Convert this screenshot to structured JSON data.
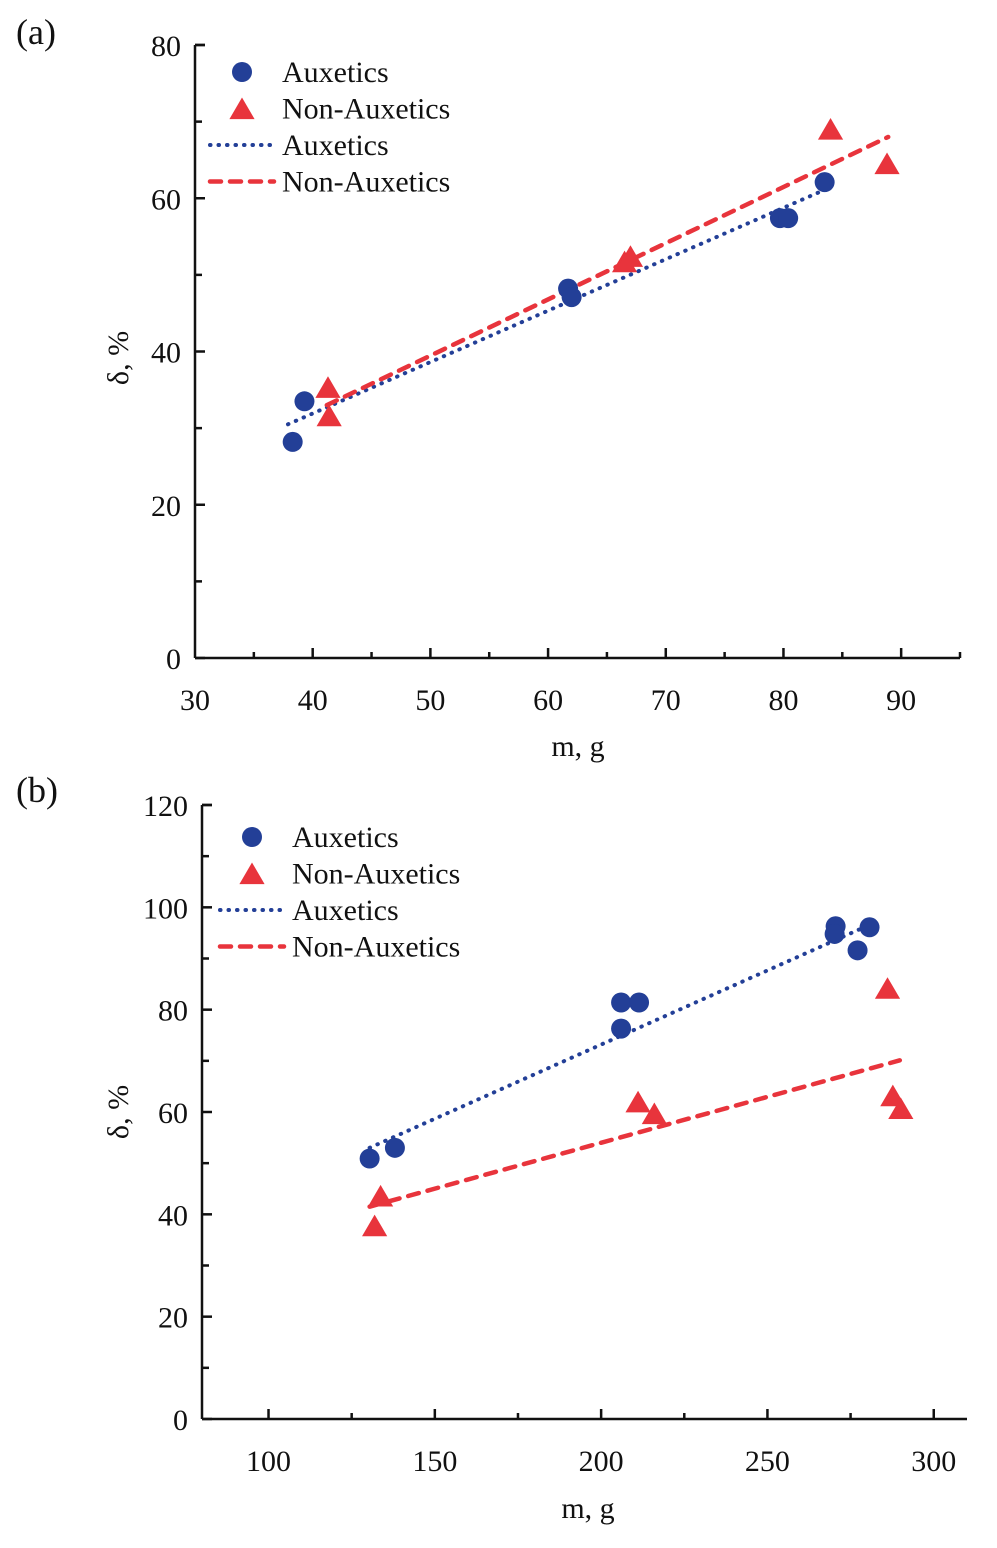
{
  "chart_data": [
    {
      "type": "scatter",
      "panel_label": "(a)",
      "title": "",
      "xlabel": "m, g",
      "ylabel": "δ, %",
      "xlim": [
        30,
        95
      ],
      "ylim": [
        0,
        80
      ],
      "xticks": [
        30,
        40,
        50,
        60,
        70,
        80,
        90
      ],
      "xtick_labels": [
        "30",
        "40",
        "50",
        "60",
        "70",
        "80",
        "90"
      ],
      "xminor": [
        35,
        45,
        55,
        65,
        75,
        85,
        95
      ],
      "yticks": [
        0,
        20,
        40,
        60,
        80
      ],
      "ytick_labels": [
        "0",
        "20",
        "40",
        "60",
        "80"
      ],
      "yminor": [
        10,
        30,
        50,
        70
      ],
      "grid": false,
      "legend_position": "top-left",
      "legend": [
        {
          "label": "Auxetics",
          "kind": "marker-circle",
          "color": "#233f97"
        },
        {
          "label": "Non-Auxetics",
          "kind": "marker-triangle",
          "color": "#e8343c"
        },
        {
          "label": "Auxetics",
          "kind": "line-dotted",
          "color": "#233f97"
        },
        {
          "label": "Non-Auxetics",
          "kind": "line-dashed",
          "color": "#e8343c"
        }
      ],
      "series": [
        {
          "name": "Auxetics",
          "marker": "circle",
          "color": "#233f97",
          "points": [
            [
              38.3,
              28.2
            ],
            [
              39.3,
              33.5
            ],
            [
              61.7,
              48.2
            ],
            [
              62.0,
              47.1
            ],
            [
              79.7,
              57.4
            ],
            [
              80.4,
              57.4
            ],
            [
              83.5,
              62.1
            ]
          ]
        },
        {
          "name": "Non-Auxetics",
          "marker": "triangle",
          "color": "#e8343c",
          "points": [
            [
              41.3,
              35.2
            ],
            [
              41.4,
              31.5
            ],
            [
              66.5,
              51.6
            ],
            [
              67.0,
              52.3
            ],
            [
              84.0,
              68.9
            ],
            [
              88.8,
              64.4
            ]
          ]
        }
      ],
      "fits": [
        {
          "name": "Auxetics",
          "style": "dotted",
          "color": "#233f97",
          "from": [
            37.9,
            30.5
          ],
          "to": [
            83.5,
            61.1
          ]
        },
        {
          "name": "Non-Auxetics",
          "style": "dashed",
          "color": "#e8343c",
          "from": [
            41.2,
            33.0
          ],
          "to": [
            88.9,
            68.0
          ]
        }
      ]
    },
    {
      "type": "scatter",
      "panel_label": "(b)",
      "title": "",
      "xlabel": "m, g",
      "ylabel": "δ, %",
      "xlim": [
        80,
        310
      ],
      "ylim": [
        0,
        120
      ],
      "xticks": [
        100,
        150,
        200,
        250,
        300
      ],
      "xtick_labels": [
        "100",
        "150",
        "200",
        "250",
        "300"
      ],
      "xminor": [
        125,
        175,
        225,
        275
      ],
      "yticks": [
        0,
        20,
        40,
        60,
        80,
        100,
        120
      ],
      "ytick_labels": [
        "0",
        "20",
        "40",
        "60",
        "80",
        "100",
        "120"
      ],
      "yminor": [
        10,
        30,
        50,
        70,
        90,
        110
      ],
      "grid": false,
      "legend_position": "top-left",
      "legend": [
        {
          "label": "Auxetics",
          "kind": "marker-circle",
          "color": "#233f97"
        },
        {
          "label": "Non-Auxetics",
          "kind": "marker-triangle",
          "color": "#e8343c"
        },
        {
          "label": "Auxetics",
          "kind": "line-dotted",
          "color": "#233f97"
        },
        {
          "label": "Non-Auxetics",
          "kind": "line-dashed",
          "color": "#e8343c"
        }
      ],
      "series": [
        {
          "name": "Auxetics",
          "marker": "circle",
          "color": "#233f97",
          "points": [
            [
              130.4,
              50.9
            ],
            [
              138.0,
              53.0
            ],
            [
              206.0,
              81.4
            ],
            [
              211.4,
              81.4
            ],
            [
              206.0,
              76.3
            ],
            [
              270.5,
              96.3
            ],
            [
              270.2,
              94.8
            ],
            [
              280.7,
              96.1
            ],
            [
              277.1,
              91.6
            ]
          ]
        },
        {
          "name": "Non-Auxetics",
          "marker": "triangle",
          "color": "#e8343c",
          "points": [
            [
              133.7,
              43.4
            ],
            [
              131.9,
              37.6
            ],
            [
              211.1,
              61.8
            ],
            [
              216.0,
              59.5
            ],
            [
              286.1,
              84.0
            ],
            [
              287.7,
              63.0
            ],
            [
              290.1,
              60.5
            ]
          ]
        }
      ],
      "fits": [
        {
          "name": "Auxetics",
          "style": "dotted",
          "color": "#233f97",
          "from": [
            130.4,
            53.0
          ],
          "to": [
            281.5,
            96.8
          ]
        },
        {
          "name": "Non-Auxetics",
          "style": "dashed",
          "color": "#e8343c",
          "from": [
            130.4,
            41.5
          ],
          "to": [
            289.8,
            70.1
          ]
        }
      ]
    }
  ]
}
